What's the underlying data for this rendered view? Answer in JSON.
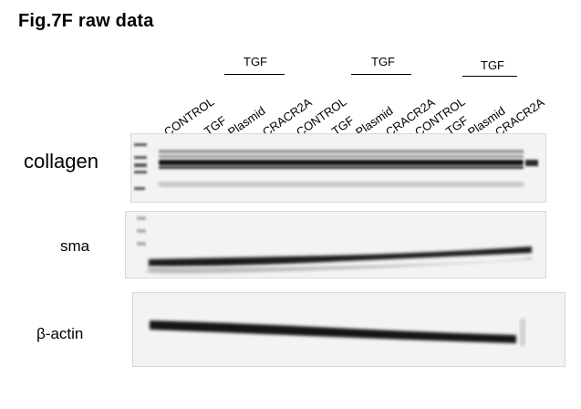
{
  "title": "Fig.7F raw data",
  "lanes": [
    "CONTROL",
    "TGF",
    "Plasmid",
    "CRACR2A",
    "CONTROL",
    "TGF",
    "Plasmid",
    "CRACR2A",
    "CONTROL",
    "TGF",
    "Plasmid",
    "CRACR2A"
  ],
  "groups": [
    "TGF",
    "TGF",
    "TGF"
  ],
  "rows": {
    "collagen": "collagen",
    "sma": "sma",
    "actin": "β-actin"
  },
  "colors": {
    "band": "#111111",
    "membrane": "#f3f3f3"
  }
}
